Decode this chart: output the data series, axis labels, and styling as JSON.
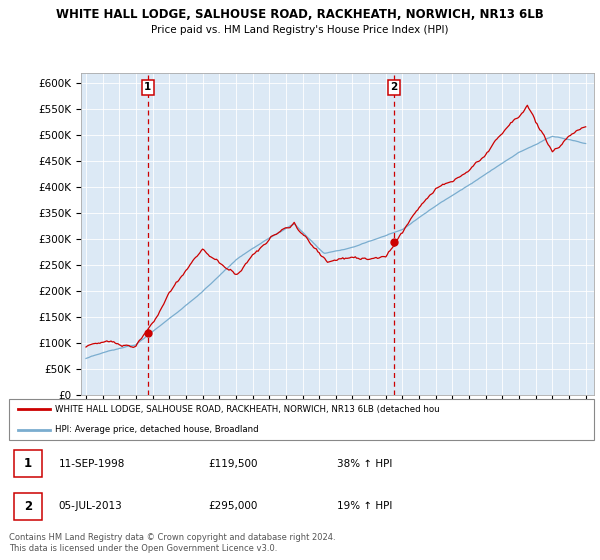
{
  "title1": "WHITE HALL LODGE, SALHOUSE ROAD, RACKHEATH, NORWICH, NR13 6LB",
  "title2": "Price paid vs. HM Land Registry's House Price Index (HPI)",
  "ytick_vals": [
    0,
    50000,
    100000,
    150000,
    200000,
    250000,
    300000,
    350000,
    400000,
    450000,
    500000,
    550000,
    600000
  ],
  "ylim": [
    0,
    620000
  ],
  "sale1_date": 1998.71,
  "sale1_price": 119500,
  "sale2_date": 2013.5,
  "sale2_price": 295000,
  "red_color": "#cc0000",
  "blue_color": "#7aadcf",
  "plot_bg": "#dce9f5",
  "vline_color": "#cc0000",
  "legend_text1": "WHITE HALL LODGE, SALHOUSE ROAD, RACKHEATH, NORWICH, NR13 6LB (detached hou",
  "legend_text2": "HPI: Average price, detached house, Broadland",
  "table_row1": [
    "1",
    "11-SEP-1998",
    "£119,500",
    "38% ↑ HPI"
  ],
  "table_row2": [
    "2",
    "05-JUL-2013",
    "£295,000",
    "19% ↑ HPI"
  ],
  "footnote1": "Contains HM Land Registry data © Crown copyright and database right 2024.",
  "footnote2": "This data is licensed under the Open Government Licence v3.0.",
  "xlim_start": 1994.7,
  "xlim_end": 2025.5,
  "xtick_years": [
    1995,
    1996,
    1997,
    1998,
    1999,
    2000,
    2001,
    2002,
    2003,
    2004,
    2005,
    2006,
    2007,
    2008,
    2009,
    2010,
    2011,
    2012,
    2013,
    2014,
    2015,
    2016,
    2017,
    2018,
    2019,
    2020,
    2021,
    2022,
    2023,
    2024,
    2025
  ]
}
